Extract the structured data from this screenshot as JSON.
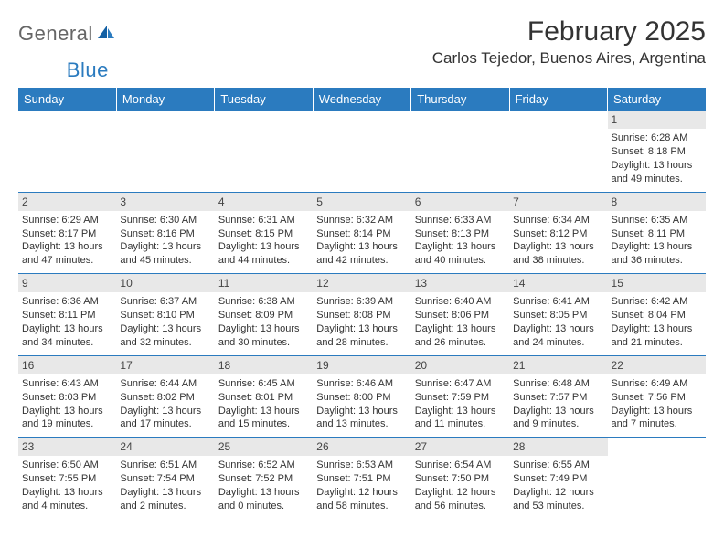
{
  "logo": {
    "general": "General",
    "blue": "Blue"
  },
  "title": "February 2025",
  "location": "Carlos Tejedor, Buenos Aires, Argentina",
  "colors": {
    "header_bg": "#2b7bbf",
    "header_text": "#ffffff",
    "daynum_bg": "#e8e8e8",
    "border": "#2b7bbf",
    "text": "#333333"
  },
  "day_headers": [
    "Sunday",
    "Monday",
    "Tuesday",
    "Wednesday",
    "Thursday",
    "Friday",
    "Saturday"
  ],
  "weeks": [
    [
      {
        "num": "",
        "sunrise": "",
        "sunset": "",
        "daylight": ""
      },
      {
        "num": "",
        "sunrise": "",
        "sunset": "",
        "daylight": ""
      },
      {
        "num": "",
        "sunrise": "",
        "sunset": "",
        "daylight": ""
      },
      {
        "num": "",
        "sunrise": "",
        "sunset": "",
        "daylight": ""
      },
      {
        "num": "",
        "sunrise": "",
        "sunset": "",
        "daylight": ""
      },
      {
        "num": "",
        "sunrise": "",
        "sunset": "",
        "daylight": ""
      },
      {
        "num": "1",
        "sunrise": "Sunrise: 6:28 AM",
        "sunset": "Sunset: 8:18 PM",
        "daylight": "Daylight: 13 hours and 49 minutes."
      }
    ],
    [
      {
        "num": "2",
        "sunrise": "Sunrise: 6:29 AM",
        "sunset": "Sunset: 8:17 PM",
        "daylight": "Daylight: 13 hours and 47 minutes."
      },
      {
        "num": "3",
        "sunrise": "Sunrise: 6:30 AM",
        "sunset": "Sunset: 8:16 PM",
        "daylight": "Daylight: 13 hours and 45 minutes."
      },
      {
        "num": "4",
        "sunrise": "Sunrise: 6:31 AM",
        "sunset": "Sunset: 8:15 PM",
        "daylight": "Daylight: 13 hours and 44 minutes."
      },
      {
        "num": "5",
        "sunrise": "Sunrise: 6:32 AM",
        "sunset": "Sunset: 8:14 PM",
        "daylight": "Daylight: 13 hours and 42 minutes."
      },
      {
        "num": "6",
        "sunrise": "Sunrise: 6:33 AM",
        "sunset": "Sunset: 8:13 PM",
        "daylight": "Daylight: 13 hours and 40 minutes."
      },
      {
        "num": "7",
        "sunrise": "Sunrise: 6:34 AM",
        "sunset": "Sunset: 8:12 PM",
        "daylight": "Daylight: 13 hours and 38 minutes."
      },
      {
        "num": "8",
        "sunrise": "Sunrise: 6:35 AM",
        "sunset": "Sunset: 8:11 PM",
        "daylight": "Daylight: 13 hours and 36 minutes."
      }
    ],
    [
      {
        "num": "9",
        "sunrise": "Sunrise: 6:36 AM",
        "sunset": "Sunset: 8:11 PM",
        "daylight": "Daylight: 13 hours and 34 minutes."
      },
      {
        "num": "10",
        "sunrise": "Sunrise: 6:37 AM",
        "sunset": "Sunset: 8:10 PM",
        "daylight": "Daylight: 13 hours and 32 minutes."
      },
      {
        "num": "11",
        "sunrise": "Sunrise: 6:38 AM",
        "sunset": "Sunset: 8:09 PM",
        "daylight": "Daylight: 13 hours and 30 minutes."
      },
      {
        "num": "12",
        "sunrise": "Sunrise: 6:39 AM",
        "sunset": "Sunset: 8:08 PM",
        "daylight": "Daylight: 13 hours and 28 minutes."
      },
      {
        "num": "13",
        "sunrise": "Sunrise: 6:40 AM",
        "sunset": "Sunset: 8:06 PM",
        "daylight": "Daylight: 13 hours and 26 minutes."
      },
      {
        "num": "14",
        "sunrise": "Sunrise: 6:41 AM",
        "sunset": "Sunset: 8:05 PM",
        "daylight": "Daylight: 13 hours and 24 minutes."
      },
      {
        "num": "15",
        "sunrise": "Sunrise: 6:42 AM",
        "sunset": "Sunset: 8:04 PM",
        "daylight": "Daylight: 13 hours and 21 minutes."
      }
    ],
    [
      {
        "num": "16",
        "sunrise": "Sunrise: 6:43 AM",
        "sunset": "Sunset: 8:03 PM",
        "daylight": "Daylight: 13 hours and 19 minutes."
      },
      {
        "num": "17",
        "sunrise": "Sunrise: 6:44 AM",
        "sunset": "Sunset: 8:02 PM",
        "daylight": "Daylight: 13 hours and 17 minutes."
      },
      {
        "num": "18",
        "sunrise": "Sunrise: 6:45 AM",
        "sunset": "Sunset: 8:01 PM",
        "daylight": "Daylight: 13 hours and 15 minutes."
      },
      {
        "num": "19",
        "sunrise": "Sunrise: 6:46 AM",
        "sunset": "Sunset: 8:00 PM",
        "daylight": "Daylight: 13 hours and 13 minutes."
      },
      {
        "num": "20",
        "sunrise": "Sunrise: 6:47 AM",
        "sunset": "Sunset: 7:59 PM",
        "daylight": "Daylight: 13 hours and 11 minutes."
      },
      {
        "num": "21",
        "sunrise": "Sunrise: 6:48 AM",
        "sunset": "Sunset: 7:57 PM",
        "daylight": "Daylight: 13 hours and 9 minutes."
      },
      {
        "num": "22",
        "sunrise": "Sunrise: 6:49 AM",
        "sunset": "Sunset: 7:56 PM",
        "daylight": "Daylight: 13 hours and 7 minutes."
      }
    ],
    [
      {
        "num": "23",
        "sunrise": "Sunrise: 6:50 AM",
        "sunset": "Sunset: 7:55 PM",
        "daylight": "Daylight: 13 hours and 4 minutes."
      },
      {
        "num": "24",
        "sunrise": "Sunrise: 6:51 AM",
        "sunset": "Sunset: 7:54 PM",
        "daylight": "Daylight: 13 hours and 2 minutes."
      },
      {
        "num": "25",
        "sunrise": "Sunrise: 6:52 AM",
        "sunset": "Sunset: 7:52 PM",
        "daylight": "Daylight: 13 hours and 0 minutes."
      },
      {
        "num": "26",
        "sunrise": "Sunrise: 6:53 AM",
        "sunset": "Sunset: 7:51 PM",
        "daylight": "Daylight: 12 hours and 58 minutes."
      },
      {
        "num": "27",
        "sunrise": "Sunrise: 6:54 AM",
        "sunset": "Sunset: 7:50 PM",
        "daylight": "Daylight: 12 hours and 56 minutes."
      },
      {
        "num": "28",
        "sunrise": "Sunrise: 6:55 AM",
        "sunset": "Sunset: 7:49 PM",
        "daylight": "Daylight: 12 hours and 53 minutes."
      },
      {
        "num": "",
        "sunrise": "",
        "sunset": "",
        "daylight": ""
      }
    ]
  ]
}
